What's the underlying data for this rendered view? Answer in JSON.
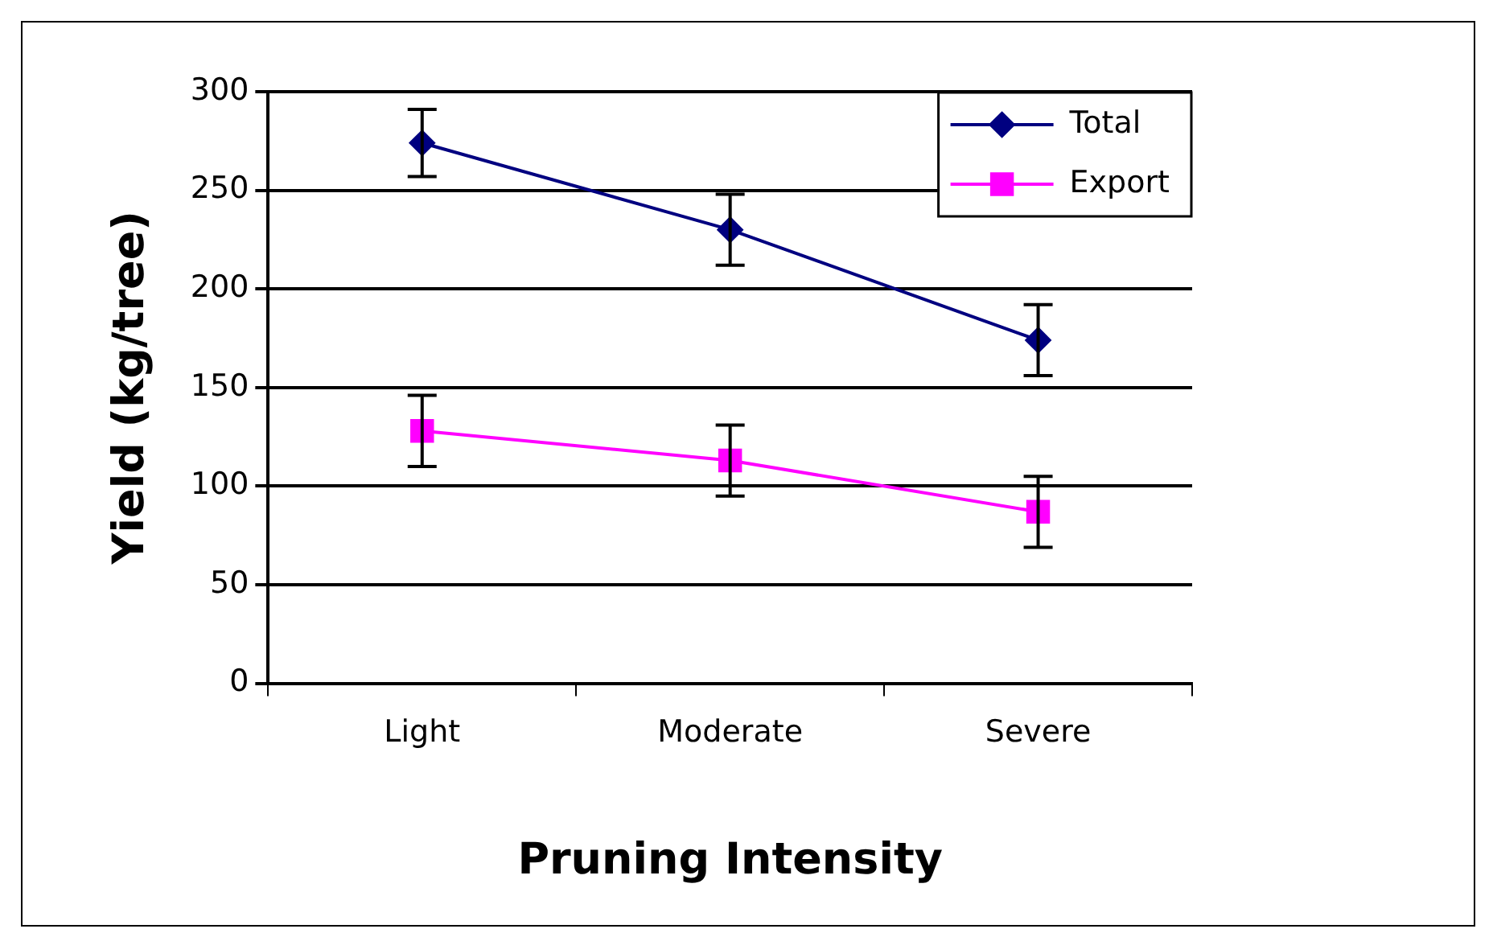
{
  "chart_data": {
    "type": "line",
    "xlabel": "Pruning Intensity",
    "ylabel": "Yield (kg/tree)",
    "categories": [
      "Light",
      "Moderate",
      "Severe"
    ],
    "series": [
      {
        "name": "Total",
        "color": "#000080",
        "values": [
          274,
          230,
          174
        ],
        "errors": [
          17,
          18,
          18
        ],
        "marker": "diamond"
      },
      {
        "name": "Export",
        "color": "#ff00ff",
        "values": [
          128,
          113,
          87
        ],
        "errors": [
          18,
          18,
          18
        ],
        "marker": "square"
      }
    ],
    "ylim": [
      0,
      300
    ],
    "yticks": [
      0,
      50,
      100,
      150,
      200,
      250,
      300
    ],
    "grid": "y",
    "legend": "top right"
  }
}
